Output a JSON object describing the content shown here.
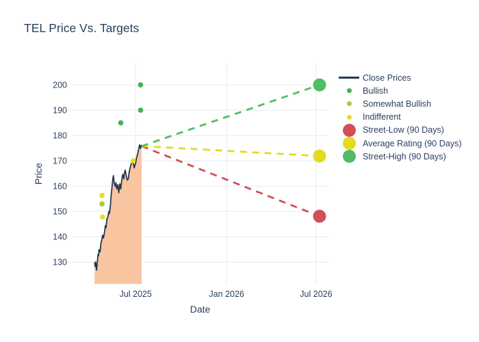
{
  "colors": {
    "background": "#ffffff",
    "text": "#2a3f5f",
    "grid": "#e9eef6",
    "close_line": "#263850",
    "area_fill": "#f9c4a0",
    "bullish": "#44b24d",
    "somewhat_bullish": "#a9ca3a",
    "indifferent": "#e5df23",
    "street_low": "#d05058",
    "average": "#e2db1f",
    "street_high": "#50bd63"
  },
  "legend": {
    "items": [
      {
        "label": "Close Prices",
        "marker": "line",
        "color": "close_line"
      },
      {
        "label": "Bullish",
        "marker": "dot",
        "color": "bullish"
      },
      {
        "label": "Somewhat Bullish",
        "marker": "dot",
        "color": "somewhat_bullish"
      },
      {
        "label": "Indifferent",
        "marker": "dot",
        "color": "indifferent"
      },
      {
        "label": "Street-Low (90 Days)",
        "marker": "bigdot",
        "color": "street_low"
      },
      {
        "label": "Average Rating (90 Days)",
        "marker": "bigdot",
        "color": "average"
      },
      {
        "label": "Street-High (90 Days)",
        "marker": "bigdot",
        "color": "street_high"
      }
    ]
  },
  "chart_data": {
    "type": "line",
    "title": "TEL Price Vs. Targets",
    "xlabel": "Date",
    "ylabel": "Price",
    "grid": true,
    "legend_position": "right",
    "xaxis": {
      "range": [
        "2025-02-22",
        "2026-07-26"
      ],
      "ticks": [
        {
          "date": "2025-07-01",
          "label": "Jul 2025"
        },
        {
          "date": "2026-01-01",
          "label": "Jan 2026"
        },
        {
          "date": "2026-07-01",
          "label": "Jul 2026"
        }
      ]
    },
    "yaxis": {
      "range": [
        121.4,
        208.4
      ],
      "ticks": [
        130,
        140,
        150,
        160,
        170,
        180,
        190,
        200
      ]
    },
    "close_prices": {
      "name": "Close Prices",
      "fill": "tozeroy",
      "dates": [
        "2025-04-09",
        "2025-04-10",
        "2025-04-11",
        "2025-04-13",
        "2025-04-14",
        "2025-04-16",
        "2025-04-17",
        "2025-04-18",
        "2025-04-20",
        "2025-04-22",
        "2025-04-24",
        "2025-04-25",
        "2025-04-27",
        "2025-04-29",
        "2025-05-01",
        "2025-05-02",
        "2025-05-04",
        "2025-05-06",
        "2025-05-08",
        "2025-05-09",
        "2025-05-11",
        "2025-05-12",
        "2025-05-14",
        "2025-05-16",
        "2025-05-17",
        "2025-05-19",
        "2025-05-21",
        "2025-05-22",
        "2025-05-24",
        "2025-05-26",
        "2025-05-28",
        "2025-05-30",
        "2025-06-01",
        "2025-06-03",
        "2025-06-05",
        "2025-06-07",
        "2025-06-08",
        "2025-06-10",
        "2025-06-12",
        "2025-06-14",
        "2025-06-16",
        "2025-06-18",
        "2025-06-20",
        "2025-06-22",
        "2025-06-24",
        "2025-06-26",
        "2025-06-28",
        "2025-07-01",
        "2025-07-03",
        "2025-07-05",
        "2025-07-07",
        "2025-07-09",
        "2025-07-11",
        "2025-07-12",
        "2025-07-13"
      ],
      "values": [
        129.8,
        128.3,
        130.1,
        126.8,
        128.7,
        133.1,
        132.5,
        134.9,
        134.0,
        137.6,
        139.1,
        140.6,
        139.5,
        141.8,
        144.5,
        143.5,
        147.1,
        147.9,
        150.1,
        149.2,
        152.5,
        155.2,
        159.2,
        163.1,
        164.2,
        161.0,
        159.9,
        161.4,
        158.9,
        160.6,
        157.4,
        160.9,
        158.9,
        162.6,
        164.6,
        162.9,
        165.0,
        166.3,
        164.1,
        162.4,
        162.8,
        165.6,
        167.4,
        168.7,
        169.4,
        170.1,
        167.2,
        169.1,
        171.4,
        172.6,
        174.4,
        176.3,
        174.9,
        176.1,
        175.8
      ]
    },
    "ratings": [
      {
        "date": "2025-04-24",
        "price": 156.3,
        "rating": "indifferent"
      },
      {
        "date": "2025-04-24",
        "price": 153.0,
        "rating": "somewhat_bullish"
      },
      {
        "date": "2025-04-25",
        "price": 147.8,
        "rating": "indifferent"
      },
      {
        "date": "2025-06-01",
        "price": 185.0,
        "rating": "bullish"
      },
      {
        "date": "2025-06-26",
        "price": 170.0,
        "rating": "indifferent"
      },
      {
        "date": "2025-07-11",
        "price": 200.0,
        "rating": "bullish"
      },
      {
        "date": "2025-07-11",
        "price": 190.0,
        "rating": "bullish"
      }
    ],
    "targets": {
      "date": "2026-07-08",
      "anchor": {
        "date": "2025-07-13",
        "price": 175.8
      },
      "items": [
        {
          "name": "street_low",
          "label": "Street-Low (90 Days)",
          "price": 148.1
        },
        {
          "name": "average",
          "label": "Average Rating (90 Days)",
          "price": 171.9
        },
        {
          "name": "street_high",
          "label": "Street-High (90 Days)",
          "price": 200.0
        }
      ]
    }
  }
}
